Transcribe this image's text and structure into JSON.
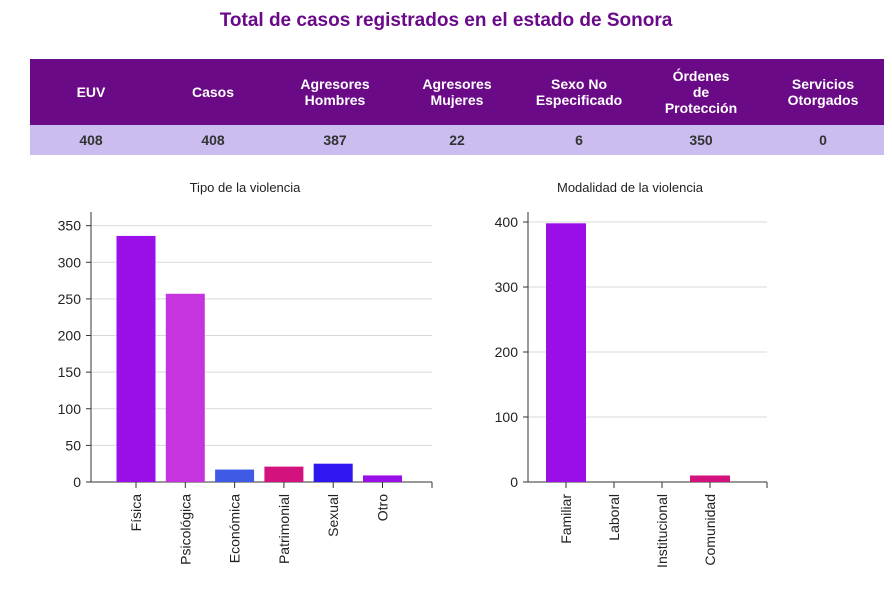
{
  "page": {
    "title": "Total de casos registrados en el estado de Sonora"
  },
  "table": {
    "headers": [
      "EUV",
      "Casos",
      "Agresores\nHombres",
      "Agresores\nMujeres",
      "Sexo No\nEspecificado",
      "Órdenes\nde\nProtección",
      "Servicios\nOtorgados"
    ],
    "values": [
      "408",
      "408",
      "387",
      "22",
      "6",
      "350",
      "0"
    ]
  },
  "chart_data": [
    {
      "type": "bar",
      "title": "Tipo de la violencia",
      "categories": [
        "Física",
        "Psicológica",
        "Económica",
        "Patrimonial",
        "Sexual",
        "Otro"
      ],
      "values": [
        336,
        257,
        17,
        21,
        25,
        9
      ],
      "colors": [
        "#9a0ee8",
        "#c634e0",
        "#3f5be6",
        "#d4127e",
        "#2f17ef",
        "#9a0ee8"
      ],
      "yticks": [
        0,
        50,
        100,
        150,
        200,
        250,
        300,
        350
      ],
      "ylim": [
        0,
        355
      ],
      "xlabel": "",
      "ylabel": "",
      "grid": true,
      "legend": "none"
    },
    {
      "type": "bar",
      "title": "Modalidad de la violencia",
      "categories": [
        "Familiar",
        "Laboral",
        "Institucional",
        "Comunidad"
      ],
      "values": [
        398,
        0,
        0,
        10
      ],
      "colors": [
        "#9a0ee8",
        "#c634e0",
        "#3f5be6",
        "#d4127e"
      ],
      "yticks": [
        0,
        100,
        200,
        300,
        400
      ],
      "ylim": [
        0,
        400
      ],
      "xlabel": "",
      "ylabel": "",
      "grid": true,
      "legend": "none"
    }
  ]
}
